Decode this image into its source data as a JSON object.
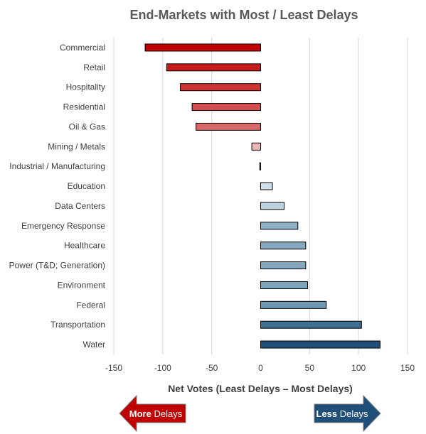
{
  "chart_data": {
    "type": "bar",
    "orientation": "horizontal",
    "title": "End-Markets with Most / Least Delays",
    "xlabel": "Net Votes (Least Delays – Most Delays)",
    "ylabel": "",
    "xlim": [
      -150,
      150
    ],
    "xticks": [
      -150,
      -100,
      -50,
      0,
      50,
      100,
      150
    ],
    "grid": true,
    "categories": [
      "Commercial",
      "Retail",
      "Hospitality",
      "Residential",
      "Oil & Gas",
      "Mining / Metals",
      "Industrial / Manufacturing",
      "Education",
      "Data Centers",
      "Emergency Response",
      "Healthcare",
      "Power (T&D; Generation)",
      "Environment",
      "Federal",
      "Transportation",
      "Water"
    ],
    "values": [
      -118,
      -96,
      -82,
      -70,
      -66,
      -9,
      -1,
      12,
      24,
      38,
      46,
      46,
      48,
      67,
      103,
      122
    ],
    "bar_colors": [
      "#c00000",
      "#c61a1a",
      "#cc3333",
      "#d24d4d",
      "#d86666",
      "#f2b8b8",
      "#d9e5ee",
      "#d1e0ea",
      "#bdd2e0",
      "#8fb0c4",
      "#86a9bf",
      "#86a9bf",
      "#7fa4bb",
      "#6e98b2",
      "#3f6f90",
      "#1f4e79"
    ]
  },
  "arrows": {
    "left": {
      "bold": "More",
      "rest": " Delays",
      "color": "#c00000"
    },
    "right": {
      "bold": "Less",
      "rest": " Delays",
      "color": "#1f4e79"
    }
  }
}
